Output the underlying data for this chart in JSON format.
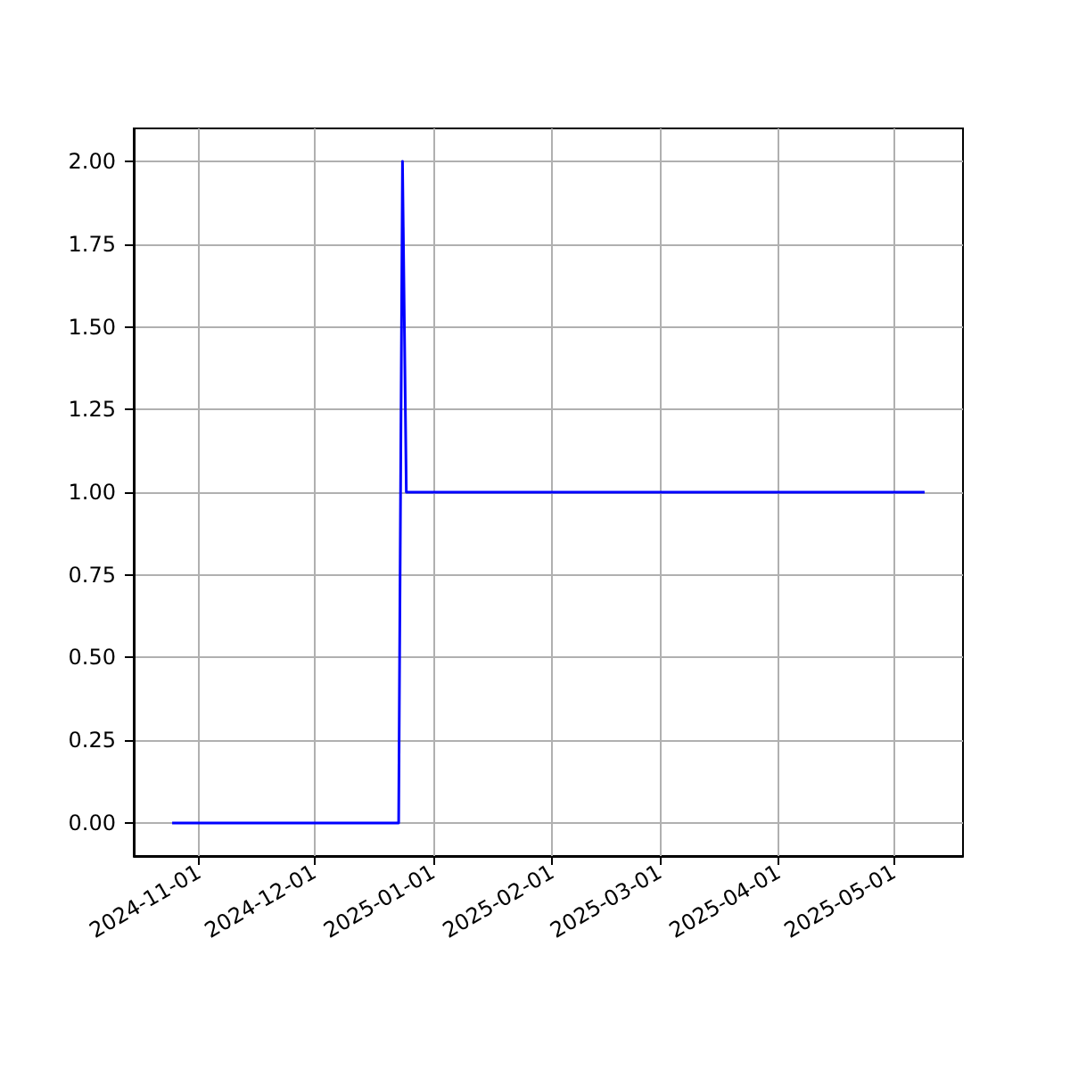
{
  "chart_data": {
    "type": "line",
    "x": [
      "2024-10-25",
      "2024-12-23",
      "2024-12-24",
      "2024-12-25",
      "2025-05-09"
    ],
    "series": [
      {
        "color": "#0000ff",
        "values": [
          0,
          0,
          2,
          1,
          1
        ]
      }
    ],
    "xlim": [
      "2024-10-15",
      "2025-05-19"
    ],
    "xticks": [
      "2024-11-01",
      "2024-12-01",
      "2025-01-01",
      "2025-02-01",
      "2025-03-01",
      "2025-04-01",
      "2025-05-01"
    ],
    "ylim": [
      -0.1,
      2.1
    ],
    "yticks": [
      {
        "value": 0,
        "label": "0.00"
      },
      {
        "value": 0.25,
        "label": "0.25"
      },
      {
        "value": 0.5,
        "label": "0.50"
      },
      {
        "value": 0.75,
        "label": "0.75"
      },
      {
        "value": 1,
        "label": "1.00"
      },
      {
        "value": 1.25,
        "label": "1.25"
      },
      {
        "value": 1.5,
        "label": "1.50"
      },
      {
        "value": 1.75,
        "label": "1.75"
      },
      {
        "value": 2,
        "label": "2.00"
      }
    ],
    "grid": true,
    "marker": "none",
    "line_style": "solid"
  }
}
